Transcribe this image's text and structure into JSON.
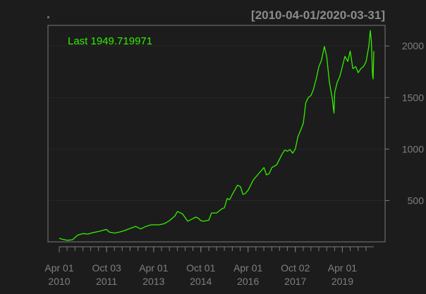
{
  "chart_data": {
    "type": "line",
    "title": "",
    "subtitle": "",
    "date_range_label": "[2010-04-01/2020-03-31]",
    "last_value_label": "Last 1949.719971",
    "xlabel": "",
    "ylabel": "",
    "x_tick_labels": [
      {
        "date": "2010-04-01",
        "line1": "Apr 01",
        "line2": "2010"
      },
      {
        "date": "2011-10-03",
        "line1": "Oct 03",
        "line2": "2011"
      },
      {
        "date": "2013-04-01",
        "line1": "Apr 01",
        "line2": "2013"
      },
      {
        "date": "2014-10-01",
        "line1": "Oct 01",
        "line2": "2014"
      },
      {
        "date": "2016-04-01",
        "line1": "Apr 01",
        "line2": "2016"
      },
      {
        "date": "2017-10-02",
        "line1": "Oct 02",
        "line2": "2017"
      },
      {
        "date": "2019-04-01",
        "line1": "Apr 01",
        "line2": "2019"
      }
    ],
    "y_ticks": [
      500,
      1000,
      1500,
      2000
    ],
    "y_tick_labels": [
      "500",
      "1000",
      "1500",
      "2000"
    ],
    "xlim": [
      "2010-04-01",
      "2020-03-31"
    ],
    "ylim": [
      100,
      2200
    ],
    "grid": true,
    "colors": {
      "background": "#1c1c1c",
      "line": "#33ee00",
      "last_label": "#33ee00",
      "axis": "#7a7a7a",
      "text": "#7f7f7f",
      "range_label": "#8c8c8c",
      "grid": "#262626"
    },
    "series": [
      {
        "x": [
          "2010-04-01",
          "2010-05-03",
          "2010-07-01",
          "2010-09-01",
          "2010-11-01",
          "2011-01-03",
          "2011-03-01",
          "2011-05-02",
          "2011-07-01",
          "2011-09-01",
          "2011-10-03",
          "2011-11-01",
          "2012-01-03",
          "2012-03-01",
          "2012-05-01",
          "2012-07-02",
          "2012-09-04",
          "2012-11-01",
          "2013-01-02",
          "2013-03-01",
          "2013-04-01",
          "2013-06-03",
          "2013-08-01",
          "2013-10-01",
          "2013-12-02",
          "2014-01-02",
          "2014-03-03",
          "2014-05-01",
          "2014-07-01",
          "2014-08-01",
          "2014-09-02",
          "2014-10-01",
          "2014-11-03",
          "2015-01-02",
          "2015-02-02",
          "2015-04-01",
          "2015-06-01",
          "2015-07-01",
          "2015-08-03",
          "2015-09-01",
          "2015-10-01",
          "2015-12-01",
          "2016-01-04",
          "2016-02-01",
          "2016-03-01",
          "2016-04-01",
          "2016-06-01",
          "2016-08-01",
          "2016-10-03",
          "2016-11-01",
          "2016-12-01",
          "2017-01-03",
          "2017-03-01",
          "2017-05-01",
          "2017-06-01",
          "2017-07-03",
          "2017-08-01",
          "2017-09-01",
          "2017-10-02",
          "2017-11-01",
          "2017-12-01",
          "2018-01-02",
          "2018-02-01",
          "2018-03-01",
          "2018-04-02",
          "2018-05-01",
          "2018-06-01",
          "2018-07-02",
          "2018-08-01",
          "2018-09-04",
          "2018-10-01",
          "2018-11-01",
          "2018-12-03",
          "2018-12-24",
          "2019-01-02",
          "2019-02-01",
          "2019-03-01",
          "2019-04-01",
          "2019-05-01",
          "2019-06-03",
          "2019-07-01",
          "2019-08-01",
          "2019-09-03",
          "2019-10-01",
          "2019-11-01",
          "2019-12-02",
          "2020-01-02",
          "2020-02-03",
          "2020-02-19",
          "2020-03-02",
          "2020-03-12",
          "2020-03-16",
          "2020-03-23",
          "2020-03-31"
        ],
        "values": [
          135,
          125,
          115,
          120,
          165,
          180,
          175,
          190,
          200,
          215,
          220,
          195,
          185,
          195,
          210,
          230,
          250,
          225,
          250,
          265,
          265,
          265,
          275,
          305,
          350,
          395,
          370,
          300,
          325,
          340,
          330,
          305,
          300,
          310,
          380,
          380,
          420,
          430,
          520,
          510,
          560,
          650,
          635,
          560,
          570,
          600,
          700,
          760,
          820,
          750,
          760,
          820,
          850,
          950,
          990,
          980,
          995,
          960,
          1000,
          1120,
          1180,
          1250,
          1450,
          1500,
          1520,
          1580,
          1680,
          1800,
          1860,
          1995,
          1900,
          1650,
          1500,
          1350,
          1550,
          1650,
          1700,
          1800,
          1900,
          1850,
          1950,
          1780,
          1800,
          1740,
          1780,
          1800,
          1850,
          2000,
          2150,
          2050,
          1820,
          1720,
          1680,
          1950
        ]
      }
    ]
  }
}
